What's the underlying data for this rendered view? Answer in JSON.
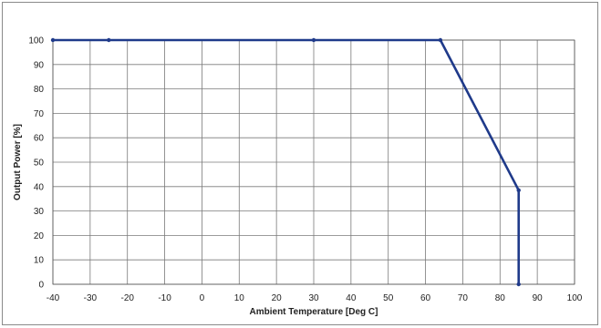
{
  "chart_data": {
    "type": "line",
    "title": "",
    "xlabel": "Ambient Temperature [Deg C]",
    "ylabel": "Output Power [%]",
    "xlim": [
      -40,
      100
    ],
    "ylim": [
      0,
      100
    ],
    "xticks": [
      -40,
      -30,
      -20,
      -10,
      0,
      10,
      20,
      30,
      40,
      50,
      60,
      70,
      80,
      90,
      100
    ],
    "yticks": [
      0,
      10,
      20,
      30,
      40,
      50,
      60,
      70,
      80,
      90,
      100
    ],
    "grid": true,
    "legend": "none",
    "series": [
      {
        "color": "#1f3a8a",
        "points": [
          {
            "x": -40,
            "y": 100
          },
          {
            "x": -25,
            "y": 100
          },
          {
            "x": 30,
            "y": 100
          },
          {
            "x": 64,
            "y": 100
          },
          {
            "x": 85,
            "y": 38.5
          },
          {
            "x": 85,
            "y": 0
          }
        ]
      }
    ],
    "grid_color": "#7a7a7a"
  }
}
